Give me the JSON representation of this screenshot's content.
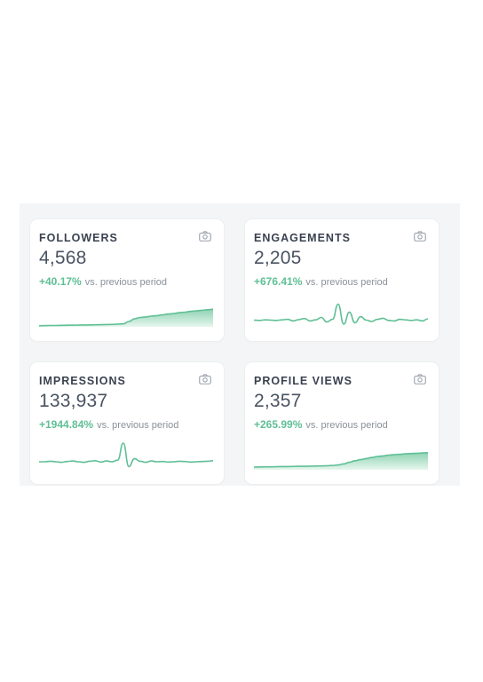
{
  "cards": [
    {
      "title": "FOLLOWERS",
      "value": "4,568",
      "change": "+40.17%",
      "change_suffix": "vs. previous period",
      "icon": "camera-icon",
      "sparkline": [
        0.04,
        0.045,
        0.05,
        0.05,
        0.055,
        0.06,
        0.06,
        0.065,
        0.07,
        0.07,
        0.075,
        0.08,
        0.085,
        0.09,
        0.1,
        0.11,
        0.2,
        0.3,
        0.35,
        0.37,
        0.4,
        0.42,
        0.45,
        0.48,
        0.5,
        0.53,
        0.55,
        0.58,
        0.6,
        0.62,
        0.64,
        0.66
      ],
      "spark_fill": true
    },
    {
      "title": "ENGAGEMENTS",
      "value": "2,205",
      "change": "+676.41%",
      "change_suffix": "vs. previous period",
      "icon": "camera-icon",
      "sparkline": [
        0.25,
        0.24,
        0.26,
        0.25,
        0.24,
        0.26,
        0.28,
        0.22,
        0.27,
        0.31,
        0.22,
        0.26,
        0.35,
        0.18,
        0.28,
        0.85,
        0.1,
        0.55,
        0.15,
        0.38,
        0.25,
        0.2,
        0.28,
        0.32,
        0.24,
        0.22,
        0.28,
        0.26,
        0.24,
        0.26,
        0.22,
        0.3
      ],
      "spark_fill": false
    },
    {
      "title": "IMPRESSIONS",
      "value": "133,937",
      "change": "+1944.84%",
      "change_suffix": "vs. previous period",
      "icon": "camera-icon",
      "sparkline": [
        0.3,
        0.3,
        0.32,
        0.3,
        0.28,
        0.31,
        0.33,
        0.3,
        0.28,
        0.32,
        0.34,
        0.29,
        0.33,
        0.3,
        0.36,
        1.0,
        0.12,
        0.42,
        0.32,
        0.28,
        0.33,
        0.3,
        0.31,
        0.29,
        0.3,
        0.32,
        0.31,
        0.29,
        0.3,
        0.31,
        0.32,
        0.34
      ],
      "spark_fill": false
    },
    {
      "title": "PROFILE VIEWS",
      "value": "2,357",
      "change": "+265.99%",
      "change_suffix": "vs. previous period",
      "icon": "camera-icon",
      "sparkline": [
        0.1,
        0.105,
        0.11,
        0.11,
        0.115,
        0.12,
        0.12,
        0.125,
        0.13,
        0.13,
        0.135,
        0.14,
        0.145,
        0.15,
        0.16,
        0.18,
        0.22,
        0.28,
        0.34,
        0.38,
        0.42,
        0.46,
        0.5,
        0.52,
        0.55,
        0.57,
        0.58,
        0.6,
        0.61,
        0.62,
        0.63,
        0.64
      ],
      "spark_fill": true
    }
  ],
  "colors": {
    "accent": "#5fbf95",
    "area_top": "#8fd3b3",
    "area_bottom": "#e6f6ee"
  }
}
